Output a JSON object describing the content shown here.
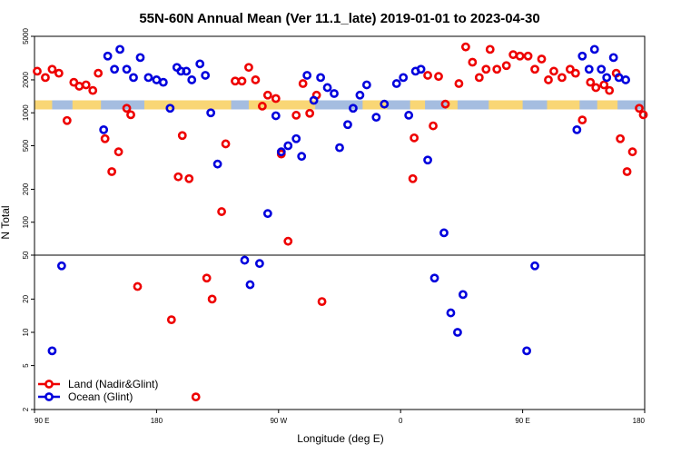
{
  "chart_data": {
    "type": "scatter",
    "title": "55N-60N Annual Mean (Ver 11.1_late)   2019-01-01 to 2023-04-30",
    "xlabel": "Longitude (deg E)",
    "ylabel": "N Total",
    "x_ticks": [
      {
        "value": 90,
        "label": "90 E"
      },
      {
        "value": 180,
        "label": "180"
      },
      {
        "value": 270,
        "label": "90 W"
      },
      {
        "value": 360,
        "label": "0"
      },
      {
        "value": 450,
        "label": "90 E"
      },
      {
        "value": 540,
        "label": "180"
      }
    ],
    "xlim": [
      90,
      540
    ],
    "upper_panel": {
      "ylim": [
        50,
        5000
      ],
      "scale": "log",
      "ticks": [
        50,
        100,
        200,
        500,
        1000,
        2000,
        5000
      ]
    },
    "lower_panel": {
      "ylim": [
        2,
        50
      ],
      "scale": "log",
      "ticks": [
        2,
        5,
        10,
        20,
        50
      ]
    },
    "colors": {
      "land": "#ee0000",
      "ocean": "#0000dd",
      "band_land": "#f9d675",
      "band_ocean": "#a5bde0"
    },
    "series": [
      {
        "name": "Land (Nadir&Glint)",
        "color": "#ee0000",
        "points": [
          [
            92,
            2400
          ],
          [
            98,
            2100
          ],
          [
            103,
            2500
          ],
          [
            108,
            2300
          ],
          [
            114,
            850
          ],
          [
            119,
            1900
          ],
          [
            123,
            1750
          ],
          [
            128,
            1800
          ],
          [
            133,
            1600
          ],
          [
            137,
            2300
          ],
          [
            142,
            580
          ],
          [
            147,
            290
          ],
          [
            152,
            440
          ],
          [
            158,
            1100
          ],
          [
            161,
            960
          ],
          [
            166,
            26
          ],
          [
            191,
            13
          ],
          [
            196,
            260
          ],
          [
            199,
            620
          ],
          [
            204,
            250
          ],
          [
            209,
            2.6
          ],
          [
            217,
            31
          ],
          [
            221,
            20
          ],
          [
            228,
            125
          ],
          [
            231,
            520
          ],
          [
            238,
            1950
          ],
          [
            243,
            1950
          ],
          [
            248,
            2600
          ],
          [
            253,
            2000
          ],
          [
            258,
            1150
          ],
          [
            262,
            1450
          ],
          [
            268,
            1350
          ],
          [
            272,
            420
          ],
          [
            277,
            67
          ],
          [
            283,
            950
          ],
          [
            288,
            1850
          ],
          [
            293,
            990
          ],
          [
            298,
            1450
          ],
          [
            302,
            19
          ],
          [
            369,
            250
          ],
          [
            370,
            590
          ],
          [
            380,
            2200
          ],
          [
            384,
            760
          ],
          [
            388,
            2150
          ],
          [
            393,
            1200
          ],
          [
            403,
            1850
          ],
          [
            408,
            4000
          ],
          [
            413,
            2900
          ],
          [
            418,
            2100
          ],
          [
            423,
            2500
          ],
          [
            426,
            3800
          ],
          [
            431,
            2500
          ],
          [
            438,
            2700
          ],
          [
            443,
            3400
          ],
          [
            448,
            3300
          ],
          [
            454,
            3300
          ],
          [
            459,
            2500
          ],
          [
            464,
            3100
          ],
          [
            469,
            2000
          ],
          [
            473,
            2400
          ],
          [
            479,
            2100
          ],
          [
            485,
            2500
          ],
          [
            489,
            2300
          ],
          [
            494,
            860
          ],
          [
            500,
            1900
          ],
          [
            504,
            1700
          ],
          [
            510,
            1800
          ],
          [
            514,
            1600
          ],
          [
            519,
            2300
          ],
          [
            522,
            580
          ],
          [
            527,
            290
          ],
          [
            531,
            440
          ],
          [
            536,
            1100
          ],
          [
            539,
            960
          ]
        ]
      },
      {
        "name": "Ocean (Glint)",
        "color": "#0000dd",
        "points": [
          [
            103,
            6.8
          ],
          [
            110,
            40
          ],
          [
            141,
            700
          ],
          [
            144,
            3300
          ],
          [
            149,
            2500
          ],
          [
            153,
            3800
          ],
          [
            158,
            2500
          ],
          [
            163,
            2100
          ],
          [
            168,
            3200
          ],
          [
            174,
            2100
          ],
          [
            180,
            2000
          ],
          [
            185,
            1900
          ],
          [
            190,
            1100
          ],
          [
            195,
            2600
          ],
          [
            198,
            2400
          ],
          [
            202,
            2400
          ],
          [
            206,
            2000
          ],
          [
            212,
            2800
          ],
          [
            216,
            2200
          ],
          [
            220,
            1000
          ],
          [
            225,
            340
          ],
          [
            245,
            45
          ],
          [
            249,
            27
          ],
          [
            256,
            42
          ],
          [
            262,
            120
          ],
          [
            268,
            940
          ],
          [
            272,
            440
          ],
          [
            277,
            500
          ],
          [
            283,
            580
          ],
          [
            287,
            400
          ],
          [
            291,
            2200
          ],
          [
            296,
            1300
          ],
          [
            301,
            2100
          ],
          [
            306,
            1700
          ],
          [
            311,
            1500
          ],
          [
            315,
            480
          ],
          [
            321,
            780
          ],
          [
            325,
            1100
          ],
          [
            330,
            1450
          ],
          [
            335,
            1800
          ],
          [
            342,
            910
          ],
          [
            348,
            1200
          ],
          [
            357,
            1850
          ],
          [
            362,
            2100
          ],
          [
            366,
            950
          ],
          [
            371,
            2400
          ],
          [
            375,
            2500
          ],
          [
            380,
            370
          ],
          [
            385,
            31
          ],
          [
            392,
            80
          ],
          [
            397,
            15
          ],
          [
            402,
            10
          ],
          [
            406,
            22
          ],
          [
            453,
            6.8
          ],
          [
            459,
            40
          ],
          [
            490,
            700
          ],
          [
            494,
            3300
          ],
          [
            499,
            2500
          ],
          [
            503,
            3800
          ],
          [
            508,
            2500
          ],
          [
            512,
            2100
          ],
          [
            517,
            3200
          ],
          [
            521,
            2100
          ],
          [
            526,
            2000
          ]
        ]
      }
    ],
    "legend": {
      "position": "bottom-left",
      "entries": [
        "Land (Nadir&Glint)",
        "Ocean (Glint)"
      ]
    }
  }
}
